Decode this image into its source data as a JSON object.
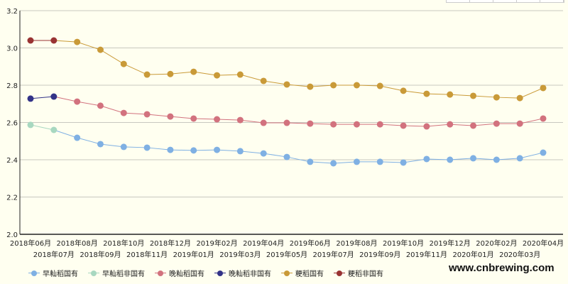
{
  "chart_data": {
    "type": "line",
    "title": "",
    "xlabel": "",
    "ylabel": "",
    "ylim": [
      2.0,
      3.2
    ],
    "yticks": [
      "2.0",
      "2.2",
      "2.4",
      "2.6",
      "2.8",
      "3.0",
      "3.2"
    ],
    "grid": true,
    "legend_position": "bottom",
    "categories": [
      "2018年06月",
      "2018年07月",
      "2018年08月",
      "2018年09月",
      "2018年10月",
      "2018年11月",
      "2018年12月",
      "2019年01月",
      "2019年02月",
      "2019年03月",
      "2019年04月",
      "2019年05月",
      "2019年06月",
      "2019年07月",
      "2019年08月",
      "2019年09月",
      "2019年10月",
      "2019年11月",
      "2019年12月",
      "2020年01月",
      "2020年02月",
      "2020年03月",
      "2020年04月"
    ],
    "series": [
      {
        "name": "早籼稻国有",
        "color": "#7fb0e3",
        "values": [
          null,
          2.56,
          2.518,
          2.484,
          2.469,
          2.465,
          2.453,
          2.45,
          2.453,
          2.446,
          2.434,
          2.415,
          2.389,
          2.381,
          2.389,
          2.389,
          2.385,
          2.404,
          2.4,
          2.408,
          2.4,
          2.408,
          2.438
        ]
      },
      {
        "name": "早籼稻非国有",
        "color": "#a8d8c0",
        "values": [
          2.587,
          2.56,
          null,
          null,
          null,
          null,
          null,
          null,
          null,
          null,
          null,
          null,
          null,
          null,
          null,
          null,
          null,
          null,
          null,
          null,
          null,
          null,
          null
        ]
      },
      {
        "name": "晚籼稻国有",
        "color": "#d2727e",
        "values": [
          null,
          2.739,
          2.712,
          2.69,
          2.651,
          2.644,
          2.632,
          2.621,
          2.617,
          2.613,
          2.598,
          2.598,
          2.594,
          2.59,
          2.59,
          2.59,
          2.583,
          2.579,
          2.59,
          2.583,
          2.594,
          2.594,
          2.621
        ]
      },
      {
        "name": "晚籼稻非国有",
        "color": "#333388",
        "values": [
          2.728,
          2.739,
          null,
          null,
          null,
          null,
          null,
          null,
          null,
          null,
          null,
          null,
          null,
          null,
          null,
          null,
          null,
          null,
          null,
          null,
          null,
          null,
          null
        ]
      },
      {
        "name": "粳稻国有",
        "color": "#c99a38",
        "values": [
          null,
          3.04,
          3.032,
          2.99,
          2.914,
          2.857,
          2.86,
          2.872,
          2.853,
          2.857,
          2.823,
          2.804,
          2.792,
          2.8,
          2.8,
          2.796,
          2.77,
          2.754,
          2.75,
          2.743,
          2.735,
          2.731,
          2.785
        ]
      },
      {
        "name": "粳稻非国有",
        "color": "#993333",
        "values": [
          3.04,
          3.04,
          null,
          null,
          null,
          null,
          null,
          null,
          null,
          null,
          null,
          null,
          null,
          null,
          null,
          null,
          null,
          null,
          null,
          null,
          null,
          null,
          null
        ]
      }
    ]
  },
  "watermark": "www.cnbrewing.com"
}
